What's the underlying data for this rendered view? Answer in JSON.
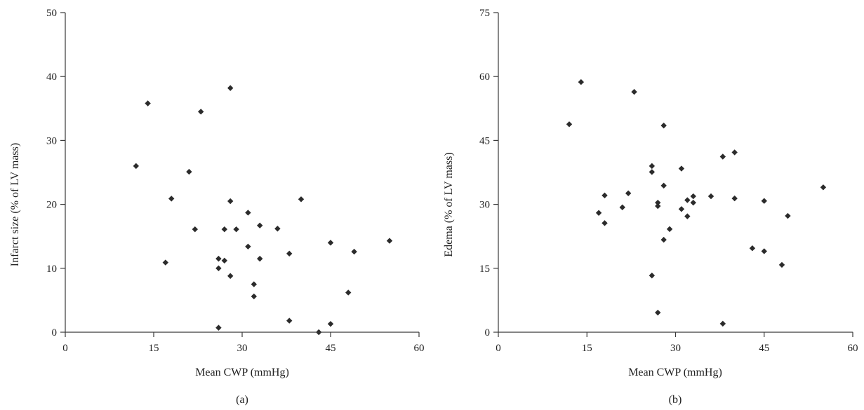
{
  "chart_data": [
    {
      "type": "scatter",
      "panel_label": "(a)",
      "xlabel": "Mean CWP (mmHg)",
      "ylabel": "Infarct size (% of LV mass)",
      "xlim": [
        0,
        60
      ],
      "ylim": [
        0,
        50
      ],
      "xticks": [
        0,
        15,
        30,
        45,
        60
      ],
      "yticks": [
        0,
        10,
        20,
        30,
        40,
        50
      ],
      "grid": false,
      "marker": "diamond",
      "marker_color": "#2b2b2b",
      "points": [
        {
          "x": 12,
          "y": 26.0
        },
        {
          "x": 14,
          "y": 35.8
        },
        {
          "x": 17,
          "y": 10.9
        },
        {
          "x": 18,
          "y": 20.9
        },
        {
          "x": 21,
          "y": 25.1
        },
        {
          "x": 22,
          "y": 16.1
        },
        {
          "x": 23,
          "y": 34.5
        },
        {
          "x": 26,
          "y": 11.5
        },
        {
          "x": 26,
          "y": 10.0
        },
        {
          "x": 26,
          "y": 0.7
        },
        {
          "x": 27,
          "y": 16.1
        },
        {
          "x": 27,
          "y": 11.2
        },
        {
          "x": 28,
          "y": 38.2
        },
        {
          "x": 28,
          "y": 20.5
        },
        {
          "x": 28,
          "y": 8.8
        },
        {
          "x": 29,
          "y": 16.1
        },
        {
          "x": 31,
          "y": 18.7
        },
        {
          "x": 31,
          "y": 13.4
        },
        {
          "x": 32,
          "y": 7.5
        },
        {
          "x": 32,
          "y": 5.6
        },
        {
          "x": 33,
          "y": 16.7
        },
        {
          "x": 33,
          "y": 11.5
        },
        {
          "x": 36,
          "y": 16.2
        },
        {
          "x": 38,
          "y": 12.3
        },
        {
          "x": 38,
          "y": 1.8
        },
        {
          "x": 40,
          "y": 20.8
        },
        {
          "x": 43,
          "y": 0.0
        },
        {
          "x": 45,
          "y": 14.0
        },
        {
          "x": 45,
          "y": 1.3
        },
        {
          "x": 48,
          "y": 6.2
        },
        {
          "x": 49,
          "y": 12.6
        },
        {
          "x": 55,
          "y": 14.3
        }
      ]
    },
    {
      "type": "scatter",
      "panel_label": "(b)",
      "xlabel": "Mean CWP (mmHg)",
      "ylabel": "Edema (% of LV mass)",
      "xlim": [
        0,
        60
      ],
      "ylim": [
        0,
        75
      ],
      "xticks": [
        0,
        15,
        30,
        45,
        60
      ],
      "yticks": [
        0,
        15,
        30,
        45,
        60,
        75
      ],
      "grid": false,
      "marker": "diamond",
      "marker_color": "#2b2b2b",
      "points": [
        {
          "x": 12,
          "y": 48.8
        },
        {
          "x": 14,
          "y": 58.7
        },
        {
          "x": 17,
          "y": 28.0
        },
        {
          "x": 18,
          "y": 32.1
        },
        {
          "x": 18,
          "y": 25.6
        },
        {
          "x": 21,
          "y": 29.3
        },
        {
          "x": 22,
          "y": 32.6
        },
        {
          "x": 23,
          "y": 56.4
        },
        {
          "x": 26,
          "y": 39.0
        },
        {
          "x": 26,
          "y": 37.6
        },
        {
          "x": 26,
          "y": 13.3
        },
        {
          "x": 27,
          "y": 30.4
        },
        {
          "x": 27,
          "y": 29.6
        },
        {
          "x": 27,
          "y": 4.6
        },
        {
          "x": 28,
          "y": 48.5
        },
        {
          "x": 28,
          "y": 34.4
        },
        {
          "x": 28,
          "y": 21.7
        },
        {
          "x": 29,
          "y": 24.2
        },
        {
          "x": 31,
          "y": 38.4
        },
        {
          "x": 31,
          "y": 28.9
        },
        {
          "x": 32,
          "y": 31.0
        },
        {
          "x": 32,
          "y": 27.2
        },
        {
          "x": 33,
          "y": 31.9
        },
        {
          "x": 33,
          "y": 30.4
        },
        {
          "x": 36,
          "y": 31.9
        },
        {
          "x": 38,
          "y": 41.2
        },
        {
          "x": 38,
          "y": 2.0
        },
        {
          "x": 40,
          "y": 42.2
        },
        {
          "x": 40,
          "y": 31.4
        },
        {
          "x": 43,
          "y": 19.7
        },
        {
          "x": 45,
          "y": 30.8
        },
        {
          "x": 45,
          "y": 19.0
        },
        {
          "x": 48,
          "y": 15.8
        },
        {
          "x": 49,
          "y": 27.3
        },
        {
          "x": 55,
          "y": 34.0
        }
      ]
    }
  ]
}
